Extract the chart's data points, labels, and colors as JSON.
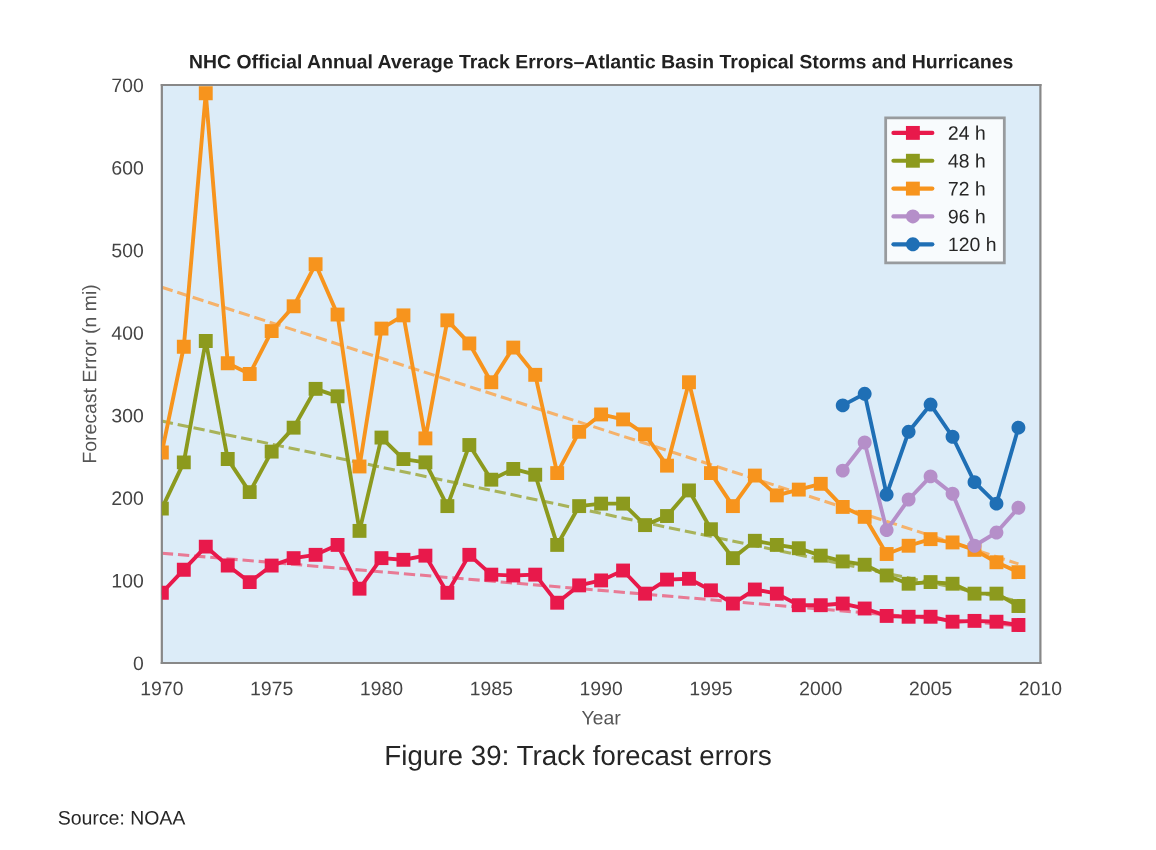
{
  "chart_data": {
    "type": "line",
    "title": "NHC Official Annual Average Track Errors–Atlantic Basin Tropical Storms and Hurricanes",
    "xlabel": "Year",
    "ylabel": "Forecast Error (n mi)",
    "annotations": [
      "Figure 39: Track forecast errors",
      "Source: NOAA"
    ],
    "x": [
      1970,
      1971,
      1972,
      1973,
      1974,
      1975,
      1976,
      1977,
      1978,
      1979,
      1980,
      1981,
      1982,
      1983,
      1984,
      1985,
      1986,
      1987,
      1988,
      1989,
      1990,
      1991,
      1992,
      1993,
      1994,
      1995,
      1996,
      1997,
      1998,
      1999,
      2000,
      2001,
      2002,
      2003,
      2004,
      2005,
      2006,
      2007,
      2008,
      2009
    ],
    "series": [
      {
        "name": "24 h",
        "color": "#e8194b",
        "marker": "square",
        "values": [
          85,
          113,
          141,
          118,
          98,
          118,
          127,
          131,
          143,
          90,
          127,
          125,
          130,
          85,
          131,
          107,
          106,
          107,
          73,
          94,
          100,
          112,
          84,
          101,
          102,
          88,
          72,
          89,
          84,
          70,
          70,
          72,
          66,
          57,
          56,
          56,
          50,
          51,
          50,
          46
        ]
      },
      {
        "name": "48 h",
        "color": "#8c9a1e",
        "marker": "square",
        "values": [
          187,
          243,
          390,
          247,
          207,
          256,
          285,
          332,
          323,
          160,
          273,
          247,
          243,
          190,
          264,
          222,
          235,
          228,
          143,
          190,
          193,
          193,
          167,
          178,
          209,
          162,
          127,
          148,
          143,
          139,
          130,
          123,
          119,
          106,
          96,
          98,
          96,
          84,
          84,
          69
        ]
      },
      {
        "name": "72 h",
        "color": "#f7941d",
        "marker": "square",
        "values": [
          255,
          383,
          690,
          363,
          350,
          402,
          432,
          483,
          422,
          238,
          405,
          421,
          272,
          415,
          387,
          340,
          382,
          349,
          230,
          280,
          301,
          295,
          277,
          239,
          340,
          230,
          190,
          227,
          203,
          210,
          217,
          189,
          177,
          132,
          142,
          150,
          146,
          137,
          122,
          110
        ]
      },
      {
        "name": "96 h",
        "color": "#b58fc9",
        "marker": "circle",
        "x": [
          2001,
          2002,
          2003,
          2004,
          2005,
          2006,
          2007,
          2008,
          2009
        ],
        "values": [
          233,
          267,
          161,
          198,
          226,
          205,
          142,
          158,
          188
        ]
      },
      {
        "name": "120 h",
        "color": "#1f6fb5",
        "marker": "circle",
        "x": [
          2001,
          2002,
          2003,
          2004,
          2005,
          2006,
          2007,
          2008,
          2009
        ],
        "values": [
          312,
          326,
          204,
          280,
          313,
          274,
          219,
          193,
          285
        ]
      },
      {
        "color": "#e87a95",
        "marker": "none",
        "line_style": "dashed",
        "x": [
          1970,
          2009
        ],
        "values": [
          133,
          45
        ]
      },
      {
        "color": "#a8b35a",
        "marker": "none",
        "line_style": "dashed",
        "x": [
          1970,
          2009
        ],
        "values": [
          293,
          75
        ]
      },
      {
        "color": "#f5b26b",
        "marker": "none",
        "line_style": "dashed",
        "x": [
          1970,
          2009
        ],
        "values": [
          455,
          120
        ]
      }
    ],
    "xlim": [
      1970,
      2010
    ],
    "xticks": [
      1970,
      1975,
      1980,
      1985,
      1990,
      1995,
      2000,
      2005,
      2010
    ],
    "ylim": [
      0,
      700
    ],
    "yticks": [
      0,
      100,
      200,
      300,
      400,
      500,
      600,
      700
    ],
    "grid": false,
    "legend": "top right"
  }
}
